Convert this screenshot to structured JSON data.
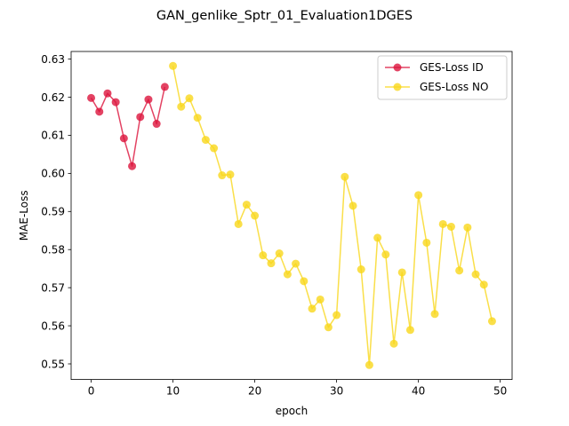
{
  "chart_data": {
    "type": "line",
    "title": "GAN_genlike_Sptr_01_Evaluation1DGES",
    "xlabel": "epoch",
    "ylabel": "MAE-Loss",
    "xlim": [
      -2.45,
      51.45
    ],
    "ylim": [
      0.5459,
      0.632
    ],
    "xticks": [
      0,
      10,
      20,
      30,
      40,
      50
    ],
    "yticks": [
      0.55,
      0.56,
      0.57,
      0.58,
      0.59,
      0.6,
      0.61,
      0.62,
      0.63
    ],
    "ytick_labels": [
      "0.55",
      "0.56",
      "0.57",
      "0.58",
      "0.59",
      "0.60",
      "0.61",
      "0.62",
      "0.63"
    ],
    "grid": false,
    "legend_position": "top-right",
    "series": [
      {
        "name": "GES-Loss ID",
        "color": "#dc143c",
        "x": [
          0,
          1,
          2,
          3,
          4,
          5,
          6,
          7,
          8,
          9
        ],
        "y": [
          0.6198,
          0.6162,
          0.621,
          0.6187,
          0.6092,
          0.6019,
          0.6148,
          0.6194,
          0.613,
          0.6227
        ]
      },
      {
        "name": "GES-Loss NO",
        "color": "#f9d71c",
        "x": [
          10,
          11,
          12,
          13,
          14,
          15,
          16,
          17,
          18,
          19,
          20,
          21,
          22,
          23,
          24,
          25,
          26,
          27,
          28,
          29,
          30,
          31,
          32,
          33,
          34,
          35,
          36,
          37,
          38,
          39,
          40,
          41,
          42,
          43,
          44,
          45,
          46,
          47,
          48,
          49
        ],
        "y": [
          0.6282,
          0.6175,
          0.6197,
          0.6146,
          0.6088,
          0.6066,
          0.5995,
          0.5997,
          0.5867,
          0.5918,
          0.5889,
          0.5785,
          0.5764,
          0.579,
          0.5735,
          0.5763,
          0.5717,
          0.5645,
          0.5669,
          0.5596,
          0.5628,
          0.5991,
          0.5915,
          0.5748,
          0.5497,
          0.5831,
          0.5787,
          0.5553,
          0.574,
          0.5589,
          0.5943,
          0.5818,
          0.5631,
          0.5867,
          0.586,
          0.5745,
          0.5858,
          0.5735,
          0.5708,
          0.5612
        ]
      }
    ]
  }
}
